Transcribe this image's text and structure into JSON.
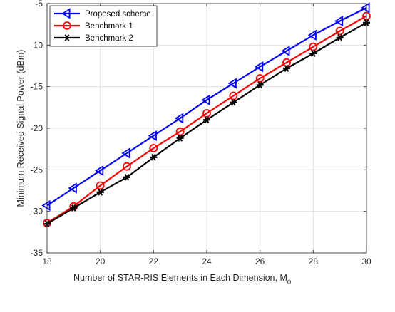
{
  "chart_data": {
    "type": "line",
    "xlabel": "Number of STAR-RIS Elements in Each Dimension, M",
    "xlabel_sub": "0",
    "ylabel": "Minimum Received Signal Power (dBm)",
    "xlim": [
      18,
      30
    ],
    "ylim": [
      -35,
      -5
    ],
    "xticks": [
      18,
      20,
      22,
      24,
      26,
      28,
      30
    ],
    "yticks": [
      -35,
      -30,
      -25,
      -20,
      -15,
      -10,
      -5
    ],
    "grid": true,
    "legend_position": "top-left",
    "x": [
      18,
      19,
      20,
      21,
      22,
      23,
      24,
      25,
      26,
      27,
      28,
      29,
      30
    ],
    "series": [
      {
        "name": "Proposed scheme",
        "color": "#0000ff",
        "marker": "triangle-left",
        "values": [
          -29.3,
          -27.2,
          -25.1,
          -23.0,
          -20.9,
          -18.8,
          -16.6,
          -14.6,
          -12.6,
          -10.7,
          -8.8,
          -7.1,
          -5.5
        ]
      },
      {
        "name": "Benchmark 1",
        "color": "#ff0000",
        "marker": "circle",
        "values": [
          -31.4,
          -29.4,
          -26.9,
          -24.6,
          -22.4,
          -20.4,
          -18.2,
          -16.1,
          -14.0,
          -12.1,
          -10.2,
          -8.3,
          -6.5
        ]
      },
      {
        "name": "Benchmark 2",
        "color": "#000000",
        "marker": "asterisk",
        "values": [
          -31.5,
          -29.6,
          -27.7,
          -25.9,
          -23.5,
          -21.2,
          -19.0,
          -16.9,
          -14.8,
          -12.8,
          -11.0,
          -9.1,
          -7.3
        ]
      }
    ]
  }
}
